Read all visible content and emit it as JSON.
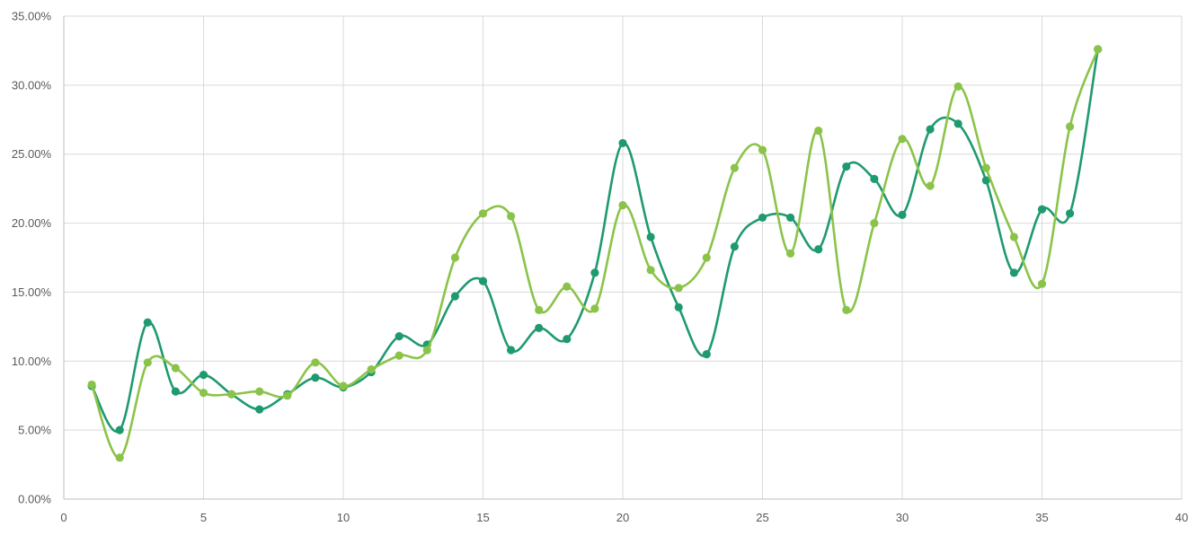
{
  "chart_data": {
    "type": "line",
    "title": "",
    "xlabel": "",
    "ylabel": "",
    "xlim": [
      0,
      40
    ],
    "ylim": [
      0,
      0.35
    ],
    "x_ticks": [
      0,
      5,
      10,
      15,
      20,
      25,
      30,
      35,
      40
    ],
    "x_tick_labels": [
      "0",
      "5",
      "10",
      "15",
      "20",
      "25",
      "30",
      "35",
      "40"
    ],
    "y_ticks": [
      0,
      0.05,
      0.1,
      0.15,
      0.2,
      0.25,
      0.3,
      0.35
    ],
    "y_tick_labels": [
      "0.00%",
      "5.00%",
      "10.00%",
      "15.00%",
      "20.00%",
      "25.00%",
      "30.00%",
      "35.00%"
    ],
    "grid": true,
    "smooth": true,
    "legend": "none",
    "series": [
      {
        "color": "#1f9a6f",
        "x": [
          1,
          2,
          3,
          4,
          5,
          6,
          7,
          8,
          9,
          10,
          11,
          12,
          13,
          14,
          15,
          16,
          17,
          18,
          19,
          20,
          21,
          22,
          23,
          24,
          25,
          26,
          27,
          28,
          29,
          30,
          31,
          32,
          33,
          34,
          35,
          36,
          37
        ],
        "values": [
          0.082,
          0.05,
          0.128,
          0.078,
          0.09,
          0.076,
          0.065,
          0.076,
          0.088,
          0.081,
          0.092,
          0.118,
          0.112,
          0.147,
          0.158,
          0.108,
          0.124,
          0.116,
          0.164,
          0.258,
          0.19,
          0.139,
          0.105,
          0.183,
          0.204,
          0.204,
          0.181,
          0.241,
          0.232,
          0.206,
          0.268,
          0.272,
          0.231,
          0.164,
          0.21,
          0.207,
          0.326
        ]
      },
      {
        "color": "#8bc34a",
        "x": [
          1,
          2,
          3,
          4,
          5,
          6,
          7,
          8,
          9,
          10,
          11,
          12,
          13,
          14,
          15,
          16,
          17,
          18,
          19,
          20,
          21,
          22,
          23,
          24,
          25,
          26,
          27,
          28,
          29,
          30,
          31,
          32,
          33,
          34,
          35,
          36,
          37
        ],
        "values": [
          0.083,
          0.03,
          0.099,
          0.095,
          0.077,
          0.076,
          0.078,
          0.075,
          0.099,
          0.082,
          0.094,
          0.104,
          0.108,
          0.175,
          0.207,
          0.205,
          0.137,
          0.154,
          0.138,
          0.213,
          0.166,
          0.153,
          0.175,
          0.24,
          0.253,
          0.178,
          0.267,
          0.137,
          0.2,
          0.261,
          0.227,
          0.299,
          0.24,
          0.19,
          0.156,
          0.27,
          0.326
        ]
      }
    ]
  }
}
